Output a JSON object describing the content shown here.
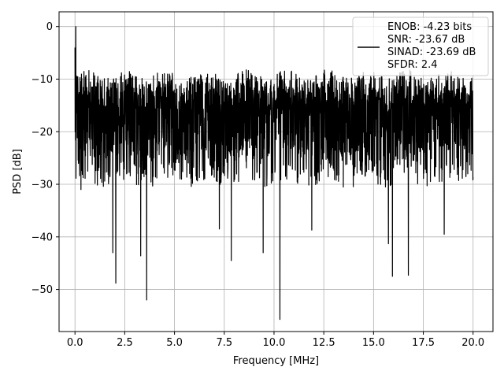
{
  "chart_data": {
    "type": "line",
    "title": "",
    "xlabel": "Frequency [MHz]",
    "ylabel": "PSD [dB]",
    "xlim": [
      -0.8,
      21.0
    ],
    "ylim": [
      -58.0,
      2.8
    ],
    "x_ticks": [
      0.0,
      2.5,
      5.0,
      7.5,
      10.0,
      12.5,
      15.0,
      17.5,
      20.0
    ],
    "x_tick_labels": [
      "0.0",
      "2.5",
      "5.0",
      "7.5",
      "10.0",
      "12.5",
      "15.0",
      "17.5",
      "20.0"
    ],
    "y_ticks": [
      0,
      -10,
      -20,
      -30,
      -40,
      -50
    ],
    "y_tick_labels": [
      "0",
      "−10",
      "−20",
      "−30",
      "−40",
      "−50"
    ],
    "grid": true,
    "legend_placement": "top-right",
    "line_color": "#000000",
    "series": [
      {
        "name": "ENOB: -4.23 bits\nSNR: -23.67 dB\nSINAD: -23.69 dB\nSFDR: 2.4",
        "label_lines": [
          "ENOB: -4.23 bits",
          "SNR: -23.67 dB",
          "SINAD: -23.69 dB",
          "SFDR: 2.4"
        ],
        "x_range": [
          0.0,
          20.0
        ],
        "peak": {
          "x": 0.04,
          "y": 0.0
        },
        "upper_envelope_db": -9.0,
        "median_db": -18.0,
        "lower_envelope_db": -30.0,
        "notable_points": [
          {
            "x": 0.3,
            "y": -31.0
          },
          {
            "x": 1.9,
            "y": -43.0
          },
          {
            "x": 2.05,
            "y": -48.8
          },
          {
            "x": 3.3,
            "y": -43.6
          },
          {
            "x": 3.6,
            "y": -52.0
          },
          {
            "x": 7.25,
            "y": -38.5
          },
          {
            "x": 7.85,
            "y": -44.5
          },
          {
            "x": 9.45,
            "y": -43.0
          },
          {
            "x": 10.3,
            "y": -55.7
          },
          {
            "x": 11.9,
            "y": -38.7
          },
          {
            "x": 15.75,
            "y": -41.3
          },
          {
            "x": 15.95,
            "y": -47.5
          },
          {
            "x": 16.75,
            "y": -47.3
          },
          {
            "x": 18.55,
            "y": -39.5
          }
        ]
      }
    ]
  }
}
